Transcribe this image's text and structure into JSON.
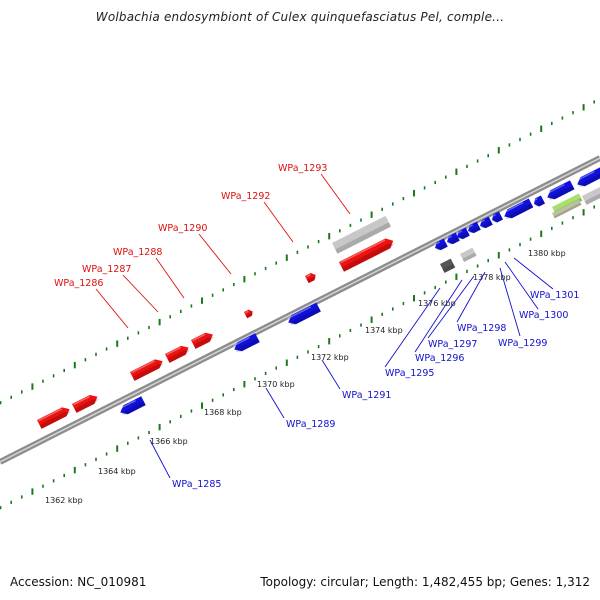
{
  "title": "Wolbachia endosymbiont of Culex quinquefasciatus Pel, comple...",
  "footer": {
    "accession": "Accession: NC_010981",
    "summary": "Topology: circular; Length: 1,482,455 bp; Genes: 1,312"
  },
  "colors": {
    "forward_gene": "#ee1111",
    "reverse_gene": "#1111dd",
    "backbone": "#8c8c8c",
    "tick": "#1a7a1a",
    "label_forward": "#dd1111",
    "label_reverse": "#1111cc",
    "grey_feature": "#c8c8c8",
    "dark_feature": "#555555",
    "green_feature": "#a8e070"
  },
  "scale_ticks": [
    {
      "label": "1362 kbp",
      "kbp": 1362
    },
    {
      "label": "1364 kbp",
      "kbp": 1364
    },
    {
      "label": "1366 kbp",
      "kbp": 1366
    },
    {
      "label": "1368 kbp",
      "kbp": 1368
    },
    {
      "label": "1370 kbp",
      "kbp": 1370
    },
    {
      "label": "1372 kbp",
      "kbp": 1372
    },
    {
      "label": "1374 kbp",
      "kbp": 1374
    },
    {
      "label": "1376 kbp",
      "kbp": 1376
    },
    {
      "label": "1378 kbp",
      "kbp": 1378
    },
    {
      "label": "1380 kbp",
      "kbp": 1380
    }
  ],
  "forward_labels": [
    "WPa_1286",
    "WPa_1287",
    "WPa_1288",
    "WPa_1290",
    "WPa_1292",
    "WPa_1293"
  ],
  "reverse_labels": [
    "WPa_1285",
    "WPa_1289",
    "WPa_1291",
    "WPa_1295",
    "WPa_1296",
    "WPa_1297",
    "WPa_1298",
    "WPa_1299",
    "WPa_1300",
    "WPa_1301"
  ]
}
